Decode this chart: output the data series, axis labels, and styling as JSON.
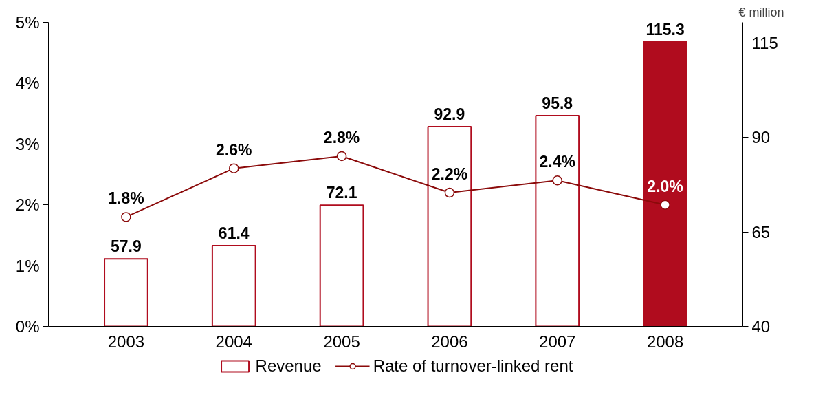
{
  "chart_data": {
    "type": "bar",
    "categories": [
      "2003",
      "2004",
      "2005",
      "2006",
      "2007",
      "2008"
    ],
    "y2label": "€ million",
    "ylim": [
      0,
      5
    ],
    "yticks": [
      {
        "value": 0,
        "label": "0%"
      },
      {
        "value": 1,
        "label": "1%"
      },
      {
        "value": 2,
        "label": "2%"
      },
      {
        "value": 3,
        "label": "3%"
      },
      {
        "value": 4,
        "label": "4%"
      },
      {
        "value": 5,
        "label": "5%"
      }
    ],
    "y2lim": [
      40,
      120.5
    ],
    "y2ticks": [
      40,
      65,
      90,
      115
    ],
    "series": [
      {
        "name": "Revenue",
        "axis": "y2",
        "color": "#b00c1e",
        "colors": [
          "#ffffff",
          "#ffffff",
          "#ffffff",
          "#ffffff",
          "#ffffff",
          "#b00c1e"
        ],
        "values": [
          57.9,
          61.4,
          72.1,
          92.9,
          95.8,
          115.3
        ],
        "value_labels": [
          "57.9",
          "61.4",
          "72.1",
          "92.9",
          "95.8",
          "115.3"
        ]
      },
      {
        "name": "Rate of turnover-linked rent",
        "type": "line",
        "color": "#8b0a0a",
        "values": [
          1.8,
          2.6,
          2.8,
          2.2,
          2.4,
          2.0
        ],
        "value_labels": [
          "1.8%",
          "2.6%",
          "2.8%",
          "2.2%",
          "2.4%",
          "2.0%"
        ]
      }
    ],
    "marker": "circle",
    "line_style": "solid",
    "grid": false,
    "legend": "bottom"
  }
}
